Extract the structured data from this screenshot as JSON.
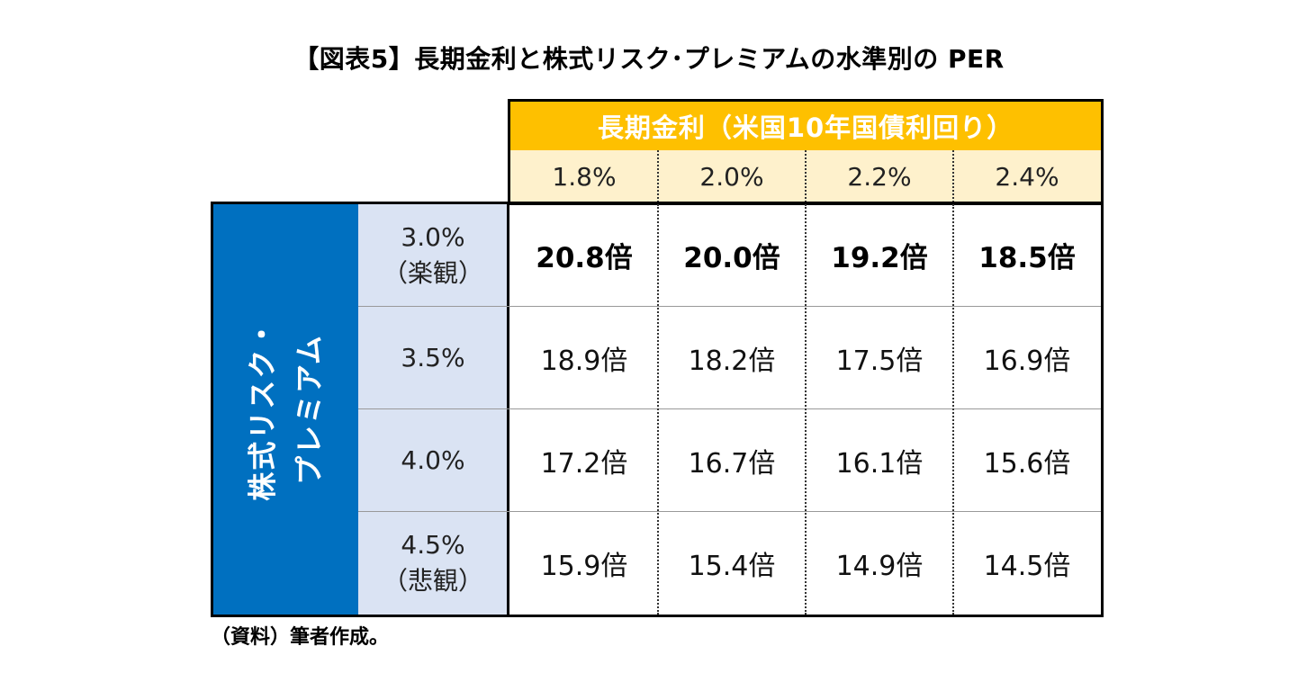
{
  "title": "【図表5】長期金利と株式リスク･プレミアムの水準別の PER",
  "header": {
    "label": "長期金利（米国10年国債利回り）",
    "rates": [
      "1.8%",
      "2.0%",
      "2.2%",
      "2.4%"
    ]
  },
  "side_label": {
    "line1": "株式リスク・",
    "line2": "プレミアム"
  },
  "rows": [
    {
      "premium": "3.0%",
      "note": "（楽観）",
      "cells": [
        "20.8倍",
        "20.0倍",
        "19.2倍",
        "18.5倍"
      ],
      "bold": true
    },
    {
      "premium": "3.5%",
      "note": "",
      "cells": [
        "18.9倍",
        "18.2倍",
        "17.5倍",
        "16.9倍"
      ],
      "bold": false
    },
    {
      "premium": "4.0%",
      "note": "",
      "cells": [
        "17.2倍",
        "16.7倍",
        "16.1倍",
        "15.6倍"
      ],
      "bold": false
    },
    {
      "premium": "4.5%",
      "note": "（悲観）",
      "cells": [
        "15.9倍",
        "15.4倍",
        "14.9倍",
        "14.5倍"
      ],
      "bold": false
    }
  ],
  "source": "（資料）筆者作成。",
  "colors": {
    "header_gold": "#fec000",
    "header_light": "#fef1cc",
    "side_blue": "#0070c0",
    "premium_light_blue": "#dae3f3"
  }
}
